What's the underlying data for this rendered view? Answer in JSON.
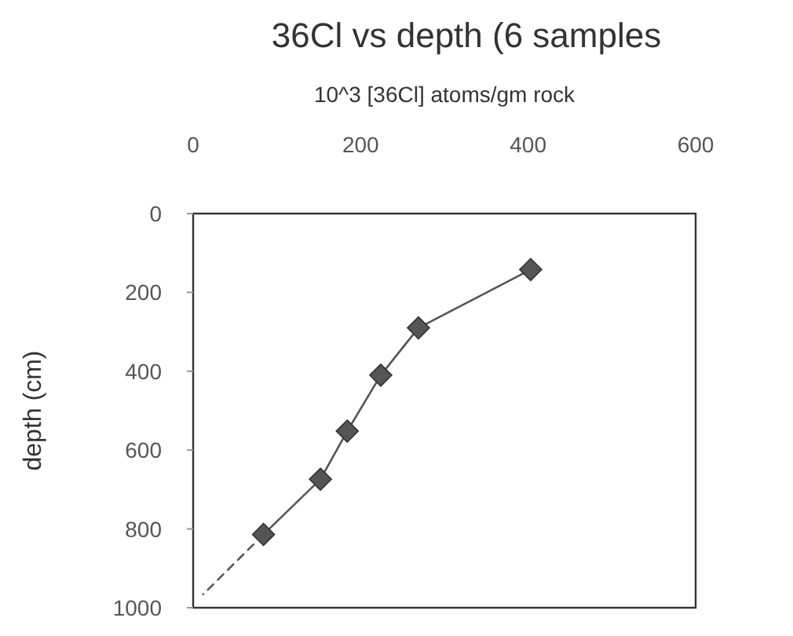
{
  "chart_data": {
    "type": "line",
    "title": "36Cl vs depth (6 samples",
    "xlabel": "10^3 [36Cl] atoms/gm rock",
    "ylabel": "depth (cm)",
    "xlim": [
      0,
      600
    ],
    "xticks": [
      0,
      200,
      400,
      600
    ],
    "ylim": [
      1000,
      0
    ],
    "yticks": [
      0,
      200,
      400,
      600,
      800,
      1000
    ],
    "grid": false,
    "series": [
      {
        "color": "#555555",
        "marker": "diamond",
        "line_style": "solid",
        "x": [
          403,
          269,
          224,
          184,
          152,
          84
        ],
        "values": [
          142,
          290,
          410,
          552,
          674,
          814
        ]
      },
      {
        "color": "#555555",
        "marker": "none",
        "line_style": "dashed",
        "x": [
          84,
          12
        ],
        "values": [
          814,
          966
        ]
      }
    ]
  }
}
